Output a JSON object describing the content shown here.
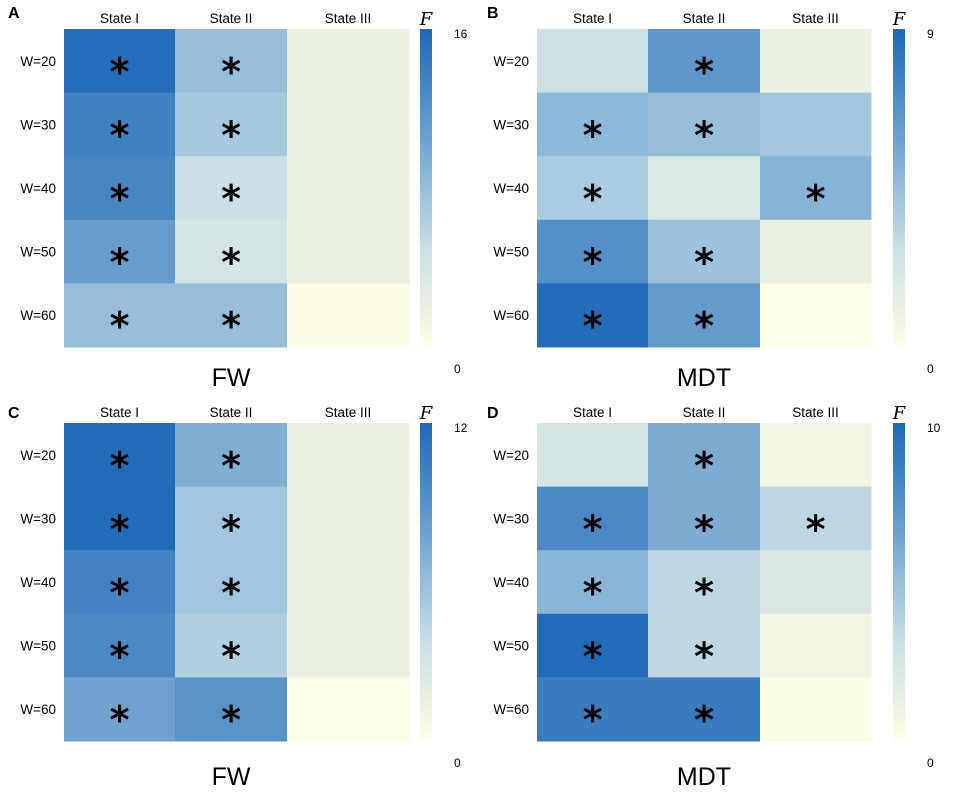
{
  "chart_data": [
    {
      "type": "heatmap",
      "panel": "A",
      "title": "FW",
      "columns": [
        "State I",
        "State II",
        "State III"
      ],
      "rows": [
        "W=20",
        "W=30",
        "W=40",
        "W=50",
        "W=60"
      ],
      "values": [
        [
          15.5,
          8,
          1.6
        ],
        [
          13.5,
          7,
          1.7
        ],
        [
          13,
          4.8,
          1.8
        ],
        [
          11,
          4,
          2.0
        ],
        [
          8,
          8,
          0.2
        ]
      ],
      "significant": [
        [
          true,
          true,
          false
        ],
        [
          true,
          true,
          false
        ],
        [
          true,
          true,
          false
        ],
        [
          true,
          true,
          false
        ],
        [
          true,
          true,
          false
        ]
      ],
      "colorbar": {
        "label": "F",
        "min": 0,
        "max": 16,
        "min_label": "0",
        "max_label": "16"
      }
    },
    {
      "type": "heatmap",
      "panel": "B",
      "title": "MDT",
      "columns": [
        "State I",
        "State II",
        "State III"
      ],
      "rows": [
        "W=20",
        "W=30",
        "W=40",
        "W=50",
        "W=60"
      ],
      "values": [
        [
          2.6,
          6.5,
          1.0
        ],
        [
          4.8,
          4.5,
          4.1
        ],
        [
          3.8,
          1.8,
          5.0
        ],
        [
          6.8,
          4.3,
          1.1
        ],
        [
          8.8,
          6.3,
          0.1
        ]
      ],
      "significant": [
        [
          false,
          true,
          false
        ],
        [
          true,
          true,
          false
        ],
        [
          true,
          false,
          true
        ],
        [
          true,
          true,
          false
        ],
        [
          true,
          true,
          false
        ]
      ],
      "colorbar": {
        "label": "F",
        "min": 0,
        "max": 9,
        "min_label": "0",
        "max_label": "9"
      }
    },
    {
      "type": "heatmap",
      "panel": "C",
      "title": "FW",
      "columns": [
        "State I",
        "State II",
        "State III"
      ],
      "rows": [
        "W=20",
        "W=30",
        "W=40",
        "W=50",
        "W=60"
      ],
      "values": [
        [
          11.8,
          7,
          1.3
        ],
        [
          11.8,
          5.5,
          1.4
        ],
        [
          10,
          5.5,
          1.4
        ],
        [
          9.6,
          4.8,
          1.4
        ],
        [
          7.8,
          8.8,
          0.1
        ]
      ],
      "significant": [
        [
          true,
          true,
          false
        ],
        [
          true,
          true,
          false
        ],
        [
          true,
          true,
          false
        ],
        [
          true,
          true,
          false
        ],
        [
          true,
          true,
          false
        ]
      ],
      "colorbar": {
        "label": "F",
        "min": 0,
        "max": 12,
        "min_label": "0",
        "max_label": "12"
      }
    },
    {
      "type": "heatmap",
      "panel": "D",
      "title": "MDT",
      "columns": [
        "State I",
        "State II",
        "State III"
      ],
      "rows": [
        "W=20",
        "W=30",
        "W=40",
        "W=50",
        "W=60"
      ],
      "values": [
        [
          2.5,
          6,
          0.7
        ],
        [
          8,
          6,
          3.5
        ],
        [
          5.5,
          3.5,
          2.2
        ],
        [
          9.8,
          3.5,
          0.7
        ],
        [
          8.8,
          8.8,
          0.2
        ]
      ],
      "significant": [
        [
          false,
          true,
          false
        ],
        [
          true,
          true,
          true
        ],
        [
          true,
          true,
          false
        ],
        [
          true,
          true,
          false
        ],
        [
          true,
          true,
          false
        ]
      ],
      "colorbar": {
        "label": "F",
        "min": 0,
        "max": 10,
        "min_label": "0",
        "max_label": "10"
      }
    }
  ]
}
